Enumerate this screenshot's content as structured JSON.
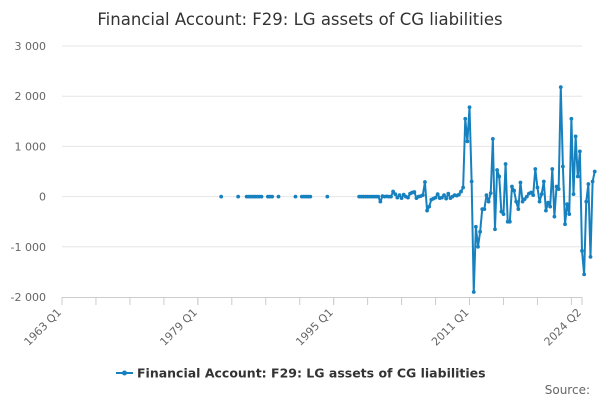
{
  "chart_data": {
    "type": "line",
    "title": "Financial Account: F29: LG assets of CG liabilities",
    "xlabel": "",
    "ylabel": "",
    "x_range": [
      "1963 Q1",
      "2024 Q2"
    ],
    "x_tick_labels": [
      "1963 Q1",
      "1979 Q1",
      "1995 Q1",
      "2011 Q1",
      "2024 Q2"
    ],
    "y_ticks": [
      -2000,
      -1000,
      0,
      1000,
      2000,
      3000
    ],
    "y_tick_labels": [
      "-2 000",
      "-1 000",
      "0",
      "1 000",
      "2 000",
      "3 000"
    ],
    "ylim": [
      -2000,
      3000
    ],
    "grid": "horizontal",
    "legend_position": "bottom-center",
    "colors": {
      "series": "#1781bf",
      "grid": "#e6e6e6",
      "axis": "#cccccc"
    },
    "series": [
      {
        "name": "Financial Account: F29: LG assets of CG liabilities",
        "segments": [
          [
            [
              "1981 Q4",
              0
            ]
          ],
          [
            [
              "1983 Q4",
              0
            ]
          ],
          [
            [
              "1984 Q4",
              0
            ],
            [
              "1985 Q1",
              0
            ],
            [
              "1985 Q2",
              0
            ],
            [
              "1985 Q3",
              0
            ],
            [
              "1985 Q4",
              0
            ],
            [
              "1986 Q1",
              0
            ],
            [
              "1986 Q2",
              0
            ],
            [
              "1986 Q3",
              0
            ]
          ],
          [
            [
              "1987 Q2",
              0
            ],
            [
              "1987 Q3",
              0
            ],
            [
              "1987 Q4",
              0
            ]
          ],
          [
            [
              "1988 Q3",
              0
            ]
          ],
          [
            [
              "1990 Q3",
              0
            ]
          ],
          [
            [
              "1991 Q2",
              0
            ],
            [
              "1991 Q3",
              0
            ],
            [
              "1991 Q4",
              0
            ],
            [
              "1992 Q1",
              0
            ],
            [
              "1992 Q2",
              0
            ]
          ],
          [
            [
              "1994 Q2",
              0
            ]
          ],
          [
            [
              "1998 Q1",
              0
            ],
            [
              "1998 Q2",
              0
            ],
            [
              "1998 Q3",
              0
            ],
            [
              "1998 Q4",
              0
            ],
            [
              "1999 Q1",
              0
            ],
            [
              "1999 Q2",
              0
            ],
            [
              "1999 Q3",
              0
            ],
            [
              "1999 Q4",
              0
            ],
            [
              "2000 Q1",
              0
            ],
            [
              "2000 Q2",
              0
            ],
            [
              "2000 Q3",
              -100
            ],
            [
              "2000 Q4",
              10
            ],
            [
              "2001 Q1",
              0
            ],
            [
              "2001 Q2",
              5
            ],
            [
              "2001 Q3",
              0
            ],
            [
              "2001 Q4",
              0
            ],
            [
              "2002 Q1",
              100
            ],
            [
              "2002 Q2",
              50
            ],
            [
              "2002 Q3",
              -20
            ],
            [
              "2002 Q4",
              30
            ],
            [
              "2003 Q1",
              -30
            ],
            [
              "2003 Q2",
              40
            ],
            [
              "2003 Q3",
              0
            ],
            [
              "2003 Q4",
              -20
            ],
            [
              "2004 Q1",
              60
            ],
            [
              "2004 Q2",
              80
            ],
            [
              "2004 Q3",
              90
            ],
            [
              "2004 Q4",
              -30
            ],
            [
              "2005 Q1",
              0
            ],
            [
              "2005 Q2",
              10
            ],
            [
              "2005 Q3",
              30
            ],
            [
              "2005 Q4",
              290
            ],
            [
              "2006 Q1",
              -280
            ],
            [
              "2006 Q2",
              -200
            ],
            [
              "2006 Q3",
              -60
            ],
            [
              "2006 Q4",
              -40
            ],
            [
              "2007 Q1",
              -20
            ],
            [
              "2007 Q2",
              50
            ],
            [
              "2007 Q3",
              -30
            ],
            [
              "2007 Q4",
              -20
            ],
            [
              "2008 Q1",
              30
            ],
            [
              "2008 Q2",
              -40
            ],
            [
              "2008 Q3",
              60
            ],
            [
              "2008 Q4",
              -30
            ],
            [
              "2009 Q1",
              0
            ],
            [
              "2009 Q2",
              30
            ],
            [
              "2009 Q3",
              20
            ],
            [
              "2009 Q4",
              40
            ],
            [
              "2010 Q1",
              100
            ],
            [
              "2010 Q2",
              180
            ],
            [
              "2010 Q3",
              1550
            ],
            [
              "2010 Q4",
              1100
            ],
            [
              "2011 Q1",
              1780
            ],
            [
              "2011 Q2",
              300
            ],
            [
              "2011 Q3",
              -1900
            ],
            [
              "2011 Q4",
              -600
            ],
            [
              "2012 Q1",
              -1000
            ],
            [
              "2012 Q2",
              -700
            ],
            [
              "2012 Q3",
              -250
            ],
            [
              "2012 Q4",
              -250
            ],
            [
              "2013 Q1",
              30
            ],
            [
              "2013 Q2",
              -100
            ],
            [
              "2013 Q3",
              70
            ],
            [
              "2013 Q4",
              1150
            ],
            [
              "2014 Q1",
              -650
            ],
            [
              "2014 Q2",
              530
            ],
            [
              "2014 Q3",
              400
            ],
            [
              "2014 Q4",
              -300
            ],
            [
              "2015 Q1",
              -350
            ],
            [
              "2015 Q2",
              650
            ],
            [
              "2015 Q3",
              -500
            ],
            [
              "2015 Q4",
              -500
            ],
            [
              "2016 Q1",
              200
            ],
            [
              "2016 Q2",
              120
            ],
            [
              "2016 Q3",
              -100
            ],
            [
              "2016 Q4",
              -250
            ],
            [
              "2017 Q1",
              280
            ],
            [
              "2017 Q2",
              -100
            ],
            [
              "2017 Q3",
              -50
            ],
            [
              "2017 Q4",
              0
            ],
            [
              "2018 Q1",
              60
            ],
            [
              "2018 Q2",
              80
            ],
            [
              "2018 Q3",
              30
            ],
            [
              "2018 Q4",
              550
            ],
            [
              "2019 Q1",
              180
            ],
            [
              "2019 Q2",
              -100
            ],
            [
              "2019 Q3",
              50
            ],
            [
              "2019 Q4",
              300
            ],
            [
              "2020 Q1",
              -280
            ],
            [
              "2020 Q2",
              -120
            ],
            [
              "2020 Q3",
              -200
            ],
            [
              "2020 Q4",
              550
            ],
            [
              "2021 Q1",
              -400
            ],
            [
              "2021 Q2",
              200
            ],
            [
              "2021 Q3",
              150
            ],
            [
              "2021 Q4",
              2180
            ],
            [
              "2022 Q1",
              600
            ],
            [
              "2022 Q2",
              -550
            ],
            [
              "2022 Q3",
              -150
            ],
            [
              "2022 Q4",
              -350
            ],
            [
              "2023 Q1",
              1550
            ],
            [
              "2023 Q2",
              50
            ],
            [
              "2023 Q3",
              1200
            ],
            [
              "2023 Q4",
              400
            ],
            [
              "2024 Q1",
              900
            ],
            [
              "2024 Q2",
              -1080
            ],
            [
              "2024 Q3",
              -1550
            ],
            [
              "2024 Q4",
              -100
            ],
            [
              "2025 Q1",
              250
            ],
            [
              "2025 Q2",
              -1200
            ],
            [
              "2025 Q3",
              300
            ],
            [
              "2025 Q4",
              500
            ]
          ]
        ]
      }
    ]
  },
  "credits": {
    "label": "Source:"
  }
}
